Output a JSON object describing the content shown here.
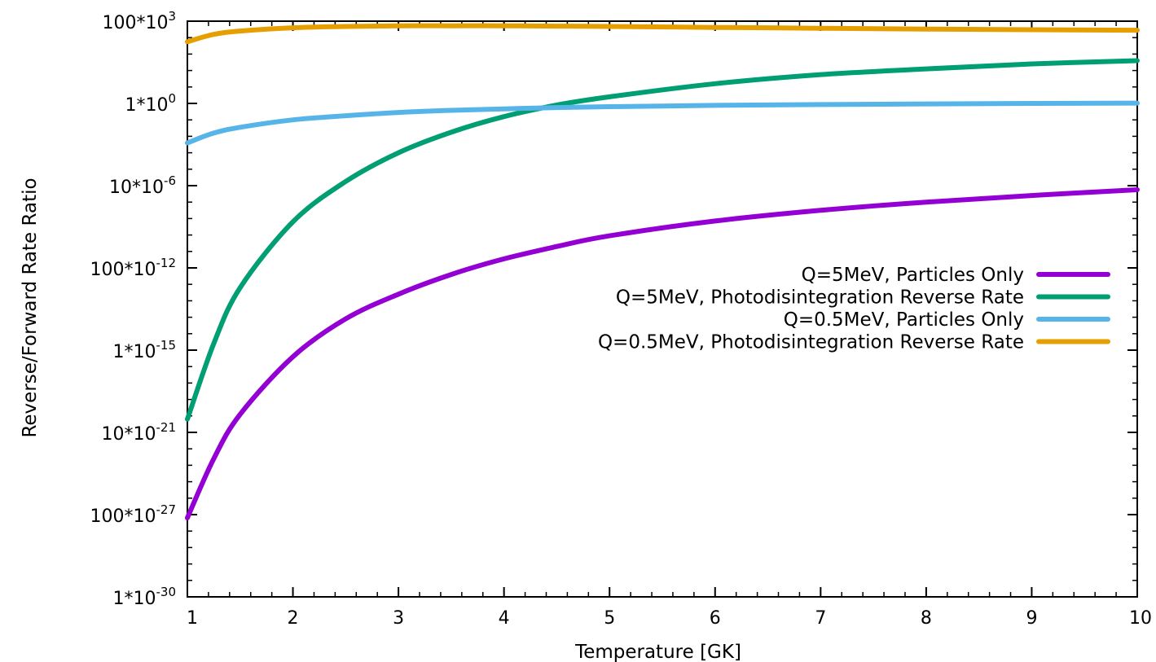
{
  "chart_data": {
    "type": "line",
    "title": "",
    "xlabel": "Temperature [GK]",
    "ylabel": "Reverse/Forward Rate Ratio",
    "xlim": [
      1,
      10
    ],
    "ylim_log10": [
      -30,
      5
    ],
    "yscale": "log",
    "grid": false,
    "legend_placement": "right-middle",
    "x_ticks": [
      {
        "value": 1,
        "label": "1"
      },
      {
        "value": 2,
        "label": "2"
      },
      {
        "value": 3,
        "label": "3"
      },
      {
        "value": 4,
        "label": "4"
      },
      {
        "value": 5,
        "label": "5"
      },
      {
        "value": 6,
        "label": "6"
      },
      {
        "value": 7,
        "label": "7"
      },
      {
        "value": 8,
        "label": "8"
      },
      {
        "value": 9,
        "label": "9"
      },
      {
        "value": 10,
        "label": "10"
      }
    ],
    "y_ticks": [
      {
        "log10": 5,
        "label": "100*10",
        "exp": "3"
      },
      {
        "log10": 0,
        "label": "1*10",
        "exp": "0"
      },
      {
        "log10": -5,
        "label": "10*10",
        "exp": "-6"
      },
      {
        "log10": -10,
        "label": "100*10",
        "exp": "-12"
      },
      {
        "log10": -15,
        "label": "1*10",
        "exp": "-15"
      },
      {
        "log10": -20,
        "label": "10*10",
        "exp": "-21"
      },
      {
        "log10": -25,
        "label": "100*10",
        "exp": "-27"
      },
      {
        "log10": -30,
        "label": "1*10",
        "exp": "-30"
      }
    ],
    "x": [
      1,
      1.25,
      1.5,
      2,
      2.5,
      3,
      3.5,
      4,
      4.5,
      5,
      6,
      7,
      8,
      9,
      10
    ],
    "series": [
      {
        "name": "Q=5MeV, Particles Only",
        "color": "#9400d3",
        "log10_values": [
          -25.2,
          -21.6,
          -18.9,
          -15.4,
          -13.1,
          -11.6,
          -10.4,
          -9.45,
          -8.7,
          -8.05,
          -7.15,
          -6.5,
          -6.0,
          -5.6,
          -5.25
        ]
      },
      {
        "name": "Q=5MeV, Photodisintegration Reverse Rate",
        "color": "#009e73",
        "log10_values": [
          -19.2,
          -14.6,
          -11.2,
          -7.2,
          -4.75,
          -3.0,
          -1.75,
          -0.8,
          -0.1,
          0.4,
          1.2,
          1.75,
          2.1,
          2.4,
          2.6
        ]
      },
      {
        "name": "Q=0.5MeV, Particles Only",
        "color": "#56b4e9",
        "log10_values": [
          -2.4,
          -1.8,
          -1.45,
          -1.0,
          -0.75,
          -0.55,
          -0.42,
          -0.33,
          -0.25,
          -0.2,
          -0.12,
          -0.07,
          -0.03,
          0.0,
          0.02
        ]
      },
      {
        "name": "Q=0.5MeV, Photodisintegration Reverse Rate",
        "color": "#e69f00",
        "log10_values": [
          3.75,
          4.2,
          4.4,
          4.6,
          4.68,
          4.72,
          4.72,
          4.72,
          4.7,
          4.68,
          4.62,
          4.57,
          4.52,
          4.48,
          4.45
        ]
      }
    ]
  }
}
